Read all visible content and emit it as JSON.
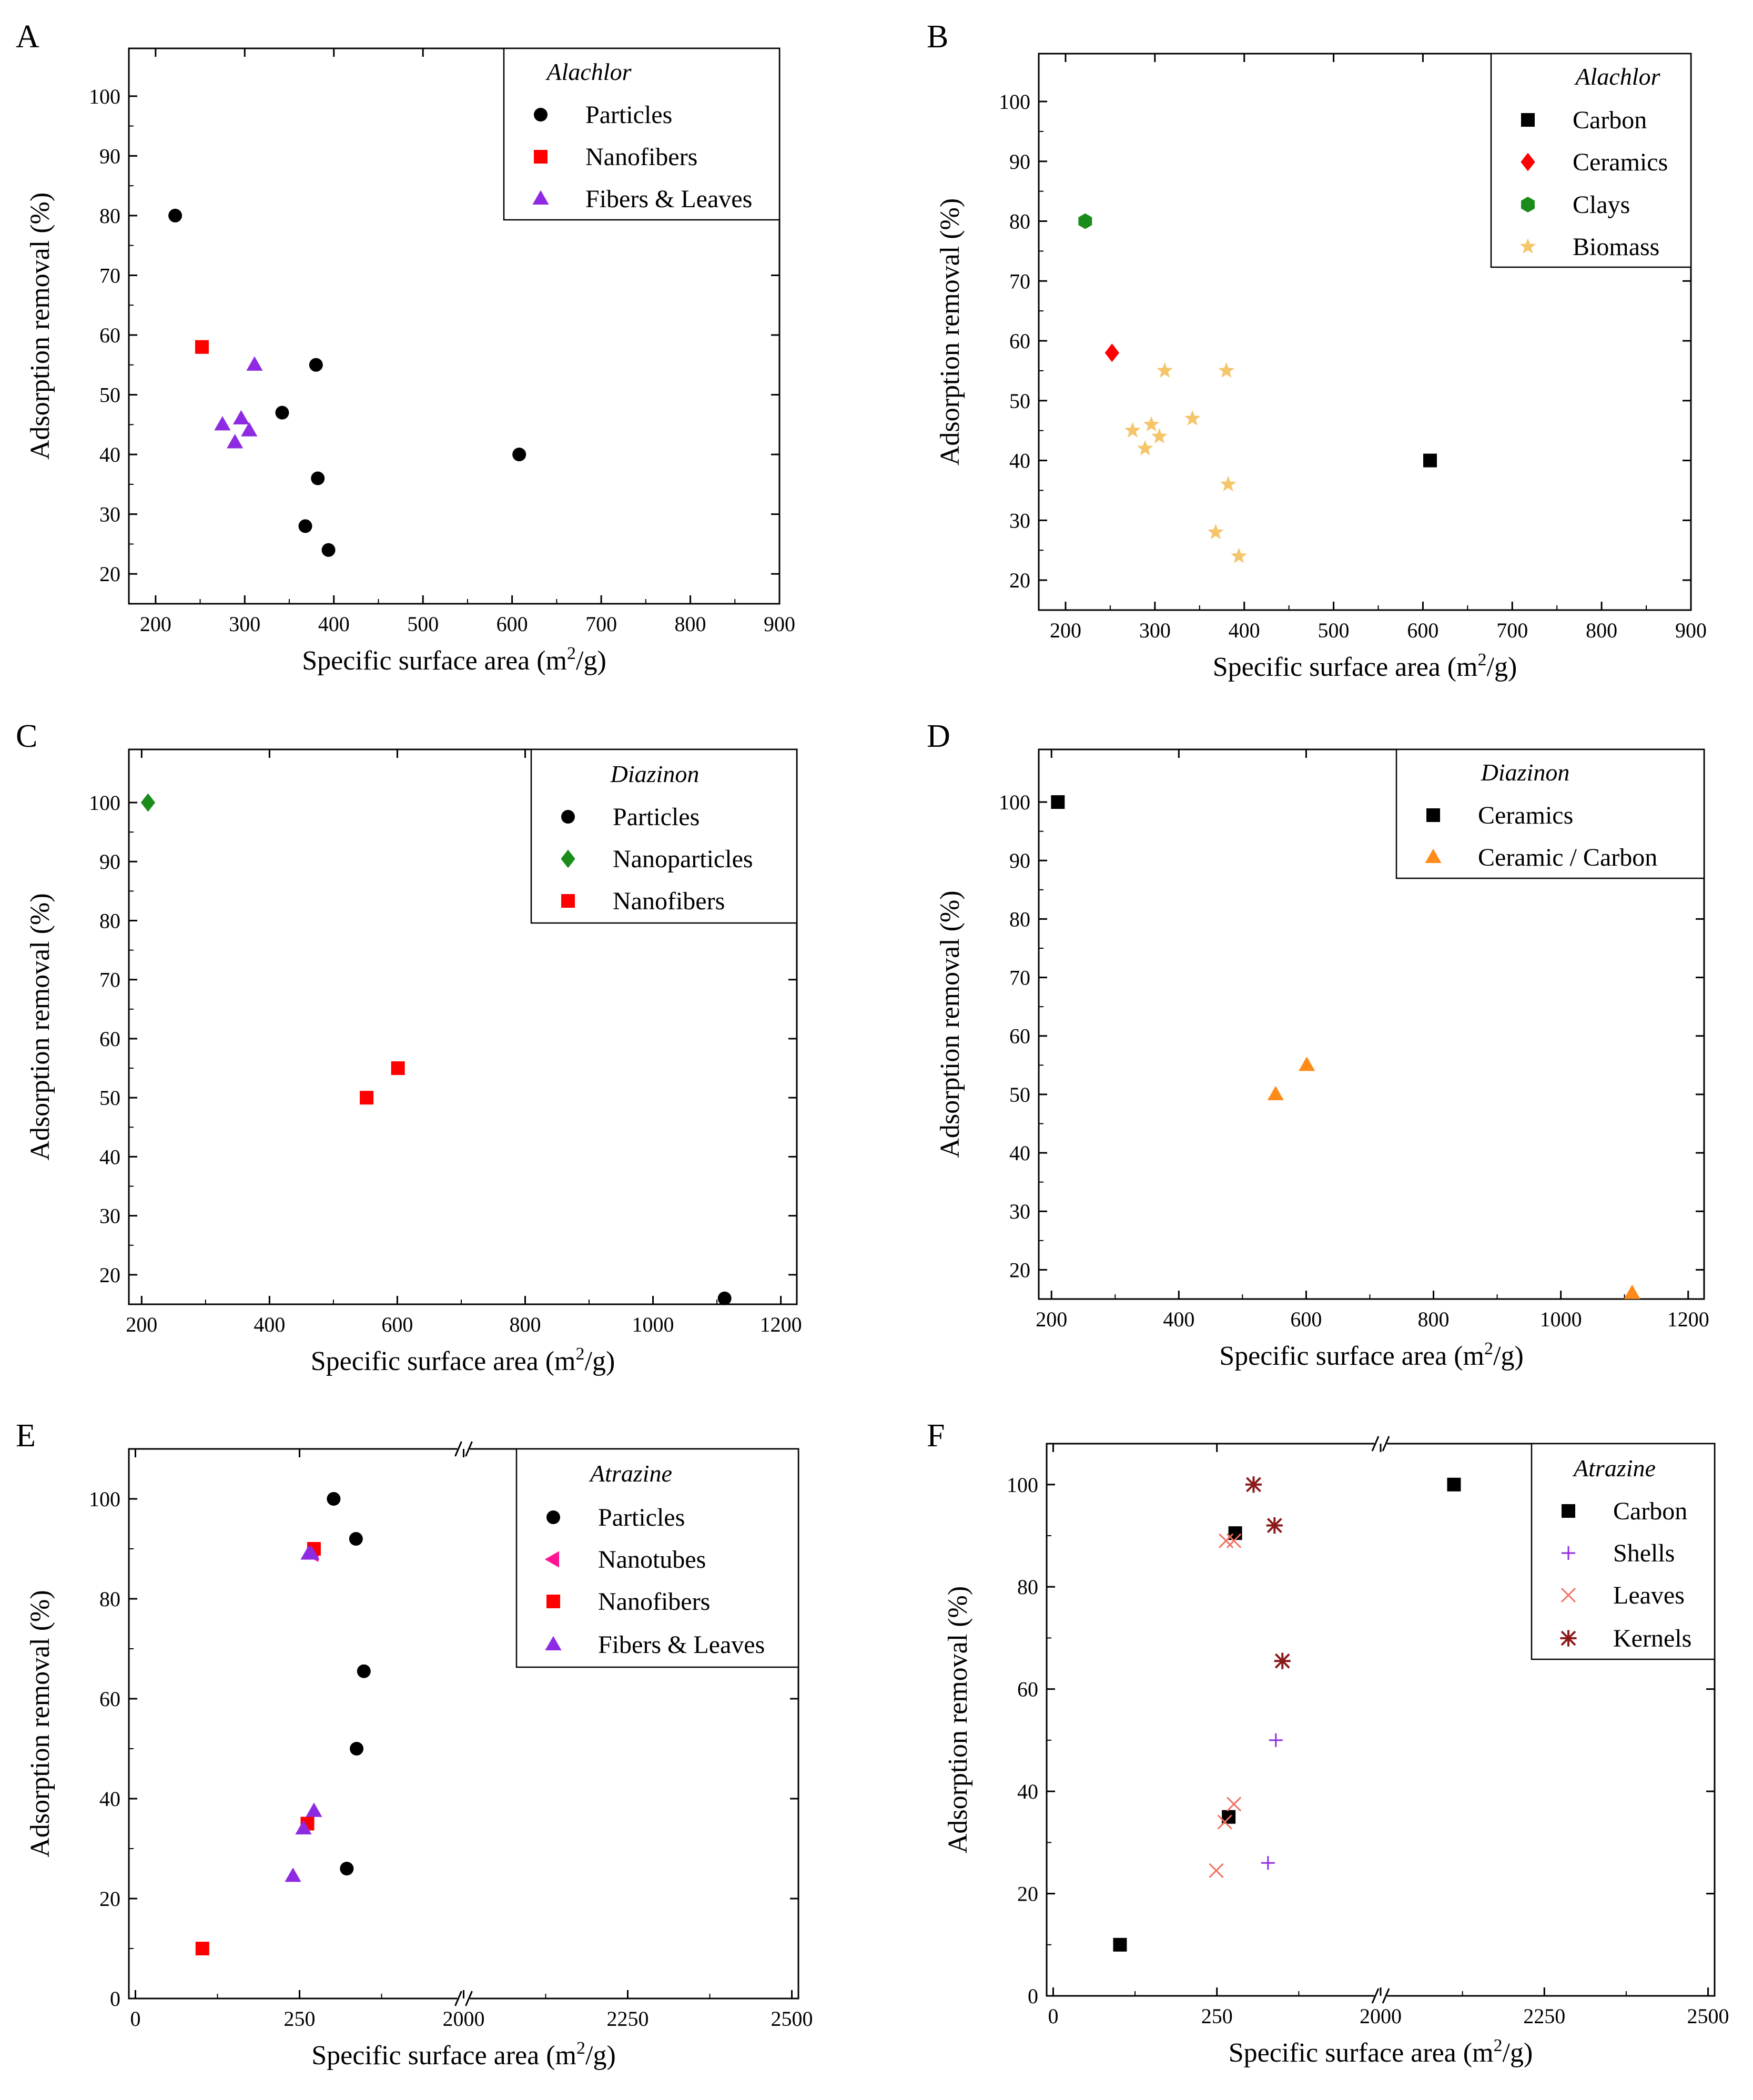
{
  "chart_data": [
    {
      "panel": "A",
      "type": "scatter",
      "xlabel": "Specific surface area (m",
      "xlabel_sup": "2",
      "xlabel_tail": "/g)",
      "ylabel": "Adsorption removal (%)",
      "xlim": [
        170,
        900
      ],
      "ylim": [
        15,
        108
      ],
      "xticks": [
        200,
        300,
        400,
        500,
        600,
        700,
        800,
        900
      ],
      "xtick_labels": [
        "200",
        "300",
        "400",
        "500",
        "600",
        "700",
        "800",
        "900"
      ],
      "yticks": [
        20,
        30,
        40,
        50,
        60,
        70,
        80,
        90,
        100
      ],
      "ytick_labels": [
        "20",
        "30",
        "40",
        "50",
        "60",
        "70",
        "80",
        "90",
        "100"
      ],
      "legend_title": "Alachlor",
      "legend_position": "top-right",
      "series": [
        {
          "name": "Particles",
          "color": "#000000",
          "marker": "circle",
          "points": [
            [
              222,
              80
            ],
            [
              380,
              55
            ],
            [
              342,
              47
            ],
            [
              608,
              40
            ],
            [
              382,
              36
            ],
            [
              368,
              28
            ],
            [
              394,
              24
            ]
          ]
        },
        {
          "name": "Nanofibers",
          "color": "#ff0000",
          "marker": "square",
          "points": [
            [
              252,
              58
            ]
          ]
        },
        {
          "name": "Fibers & Leaves",
          "color": "#8e2be2",
          "marker": "triangle",
          "points": [
            [
              311,
              55
            ],
            [
              275,
              45
            ],
            [
              296,
              46
            ],
            [
              305,
              44
            ],
            [
              289,
              42
            ]
          ]
        }
      ]
    },
    {
      "panel": "B",
      "type": "scatter",
      "xlabel": "Specific surface area (m",
      "xlabel_sup": "2",
      "xlabel_tail": "/g)",
      "ylabel": "Adsorption removal (%)",
      "xlim": [
        170,
        900
      ],
      "ylim": [
        15,
        108
      ],
      "xticks": [
        200,
        300,
        400,
        500,
        600,
        700,
        800,
        900
      ],
      "xtick_labels": [
        "200",
        "300",
        "400",
        "500",
        "600",
        "700",
        "800",
        "900"
      ],
      "yticks": [
        20,
        30,
        40,
        50,
        60,
        70,
        80,
        90,
        100
      ],
      "ytick_labels": [
        "20",
        "30",
        "40",
        "50",
        "60",
        "70",
        "80",
        "90",
        "100"
      ],
      "legend_title": "Alachlor",
      "legend_position": "top-right",
      "series": [
        {
          "name": "Carbon",
          "color": "#000000",
          "marker": "square",
          "points": [
            [
              608,
              40
            ]
          ]
        },
        {
          "name": "Ceramics",
          "color": "#ff0000",
          "marker": "diamond",
          "points": [
            [
              252,
              58
            ]
          ]
        },
        {
          "name": "Clays",
          "color": "#1a8c1a",
          "marker": "hexagon",
          "points": [
            [
              222,
              80
            ]
          ]
        },
        {
          "name": "Biomass",
          "color": "#f5c56b",
          "marker": "star",
          "points": [
            [
              311,
              55
            ],
            [
              380,
              55
            ],
            [
              275,
              45
            ],
            [
              296,
              46
            ],
            [
              305,
              44
            ],
            [
              289,
              42
            ],
            [
              342,
              47
            ],
            [
              382,
              36
            ],
            [
              368,
              28
            ],
            [
              394,
              24
            ]
          ]
        }
      ]
    },
    {
      "panel": "C",
      "type": "scatter",
      "xlabel": "Specific surface area (m",
      "xlabel_sup": "2",
      "xlabel_tail": "/g)",
      "ylabel": "Adsorption removal (%)",
      "xlim": [
        180,
        1225
      ],
      "ylim": [
        15,
        109
      ],
      "xticks": [
        200,
        400,
        600,
        800,
        1000,
        1200
      ],
      "xtick_labels": [
        "200",
        "400",
        "600",
        "800",
        "1000",
        "1200"
      ],
      "yticks": [
        20,
        30,
        40,
        50,
        60,
        70,
        80,
        90,
        100
      ],
      "ytick_labels": [
        "20",
        "30",
        "40",
        "50",
        "60",
        "70",
        "80",
        "90",
        "100"
      ],
      "legend_title": "Diazinon",
      "legend_position": "top-right",
      "series": [
        {
          "name": "Particles",
          "color": "#000000",
          "marker": "circle",
          "points": [
            [
              1112,
              16
            ]
          ]
        },
        {
          "name": "Nanoparticles",
          "color": "#1a8c1a",
          "marker": "diamond",
          "points": [
            [
              210,
              100
            ]
          ]
        },
        {
          "name": "Nanofibers",
          "color": "#ff0000",
          "marker": "square",
          "points": [
            [
              552,
              50
            ],
            [
              601,
              55
            ]
          ]
        }
      ]
    },
    {
      "panel": "D",
      "type": "scatter",
      "xlabel": "Specific surface area (m",
      "xlabel_sup": "2",
      "xlabel_tail": "/g)",
      "ylabel": "Adsorption removal (%)",
      "xlim": [
        180,
        1225
      ],
      "ylim": [
        15,
        109
      ],
      "xticks": [
        200,
        400,
        600,
        800,
        1000,
        1200
      ],
      "xtick_labels": [
        "200",
        "400",
        "600",
        "800",
        "1000",
        "1200"
      ],
      "yticks": [
        20,
        30,
        40,
        50,
        60,
        70,
        80,
        90,
        100
      ],
      "ytick_labels": [
        "20",
        "30",
        "40",
        "50",
        "60",
        "70",
        "80",
        "90",
        "100"
      ],
      "legend_title": "Diazinon",
      "legend_position": "top-right",
      "series": [
        {
          "name": "Ceramics",
          "color": "#000000",
          "marker": "square",
          "points": [
            [
              210,
              100
            ]
          ]
        },
        {
          "name": "Ceramic / Carbon",
          "color": "#ff8c1a",
          "marker": "triangle",
          "points": [
            [
              552,
              50
            ],
            [
              601,
              55
            ],
            [
              1112,
              16
            ]
          ]
        }
      ]
    },
    {
      "panel": "E",
      "type": "scatter",
      "axis_break": "//",
      "xlabel": "Specific surface area (m",
      "xlabel_sup": "2",
      "xlabel_tail": "/g)",
      "ylabel": "Adsorption removal (%)",
      "xlim": [
        -10,
        1010
      ],
      "ylim": [
        0,
        110
      ],
      "xticks": [
        0,
        250,
        500,
        750,
        1000
      ],
      "xtick_labels": [
        "0",
        "250",
        "2000",
        "2250",
        "2500"
      ],
      "yticks": [
        0,
        20,
        40,
        60,
        80,
        100
      ],
      "ytick_labels": [
        "0",
        "20",
        "40",
        "60",
        "80",
        "100"
      ],
      "legend_title": "Atrazine",
      "legend_position": "top-right",
      "series": [
        {
          "name": "Particles",
          "color": "#000000",
          "marker": "circle",
          "points": [
            [
              302,
              100
            ],
            [
              336,
              92
            ],
            [
              348,
              65.5
            ],
            [
              337,
              50
            ],
            [
              322,
              26
            ]
          ]
        },
        {
          "name": "Nanotubes",
          "color": "#ff1493",
          "marker": "triangle-left",
          "points": [
            [
              270,
              89
            ]
          ]
        },
        {
          "name": "Nanofibers",
          "color": "#ff0000",
          "marker": "square",
          "points": [
            [
              102,
              10
            ],
            [
              272,
              90
            ],
            [
              262,
              35
            ]
          ]
        },
        {
          "name": "Fibers & Leaves",
          "color": "#8e2be2",
          "marker": "triangle",
          "points": [
            [
              264,
              89
            ],
            [
              268,
              89
            ],
            [
              272,
              37.5
            ],
            [
              256,
              34
            ],
            [
              240,
              24.5
            ]
          ]
        }
      ]
    },
    {
      "panel": "F",
      "type": "scatter",
      "axis_break": "//",
      "xlabel": "Specific surface area (m",
      "xlabel_sup": "2",
      "xlabel_tail": "/g)",
      "ylabel": "Adsorption removal (%)",
      "xlim": [
        -10,
        1010
      ],
      "ylim": [
        0,
        108
      ],
      "xticks": [
        0,
        250,
        500,
        750,
        1000
      ],
      "xtick_labels": [
        "0",
        "250",
        "2000",
        "2250",
        "2500"
      ],
      "yticks": [
        0,
        20,
        40,
        60,
        80,
        100
      ],
      "ytick_labels": [
        "0",
        "20",
        "40",
        "60",
        "80",
        "100"
      ],
      "legend_title": "Atrazine",
      "legend_position": "top-right",
      "series": [
        {
          "name": "Carbon",
          "color": "#000000",
          "marker": "square",
          "points": [
            [
              102,
              10
            ],
            [
              268,
              35
            ],
            [
              278,
              90.5
            ],
            [
              612,
              100
            ]
          ]
        },
        {
          "name": "Shells",
          "color": "#8e2be2",
          "marker": "plus",
          "points": [
            [
              340,
              50
            ],
            [
              328,
              26
            ]
          ]
        },
        {
          "name": "Leaves",
          "color": "#f07060",
          "marker": "x",
          "points": [
            [
              264,
              89
            ],
            [
              276,
              89
            ],
            [
              276,
              37.5
            ],
            [
              262,
              34
            ],
            [
              249,
              24.5
            ]
          ]
        },
        {
          "name": "Kernels",
          "color": "#8b1a1a",
          "marker": "asterisk",
          "points": [
            [
              306,
              100
            ],
            [
              338,
              92
            ],
            [
              350,
              65.5
            ]
          ]
        }
      ]
    }
  ]
}
